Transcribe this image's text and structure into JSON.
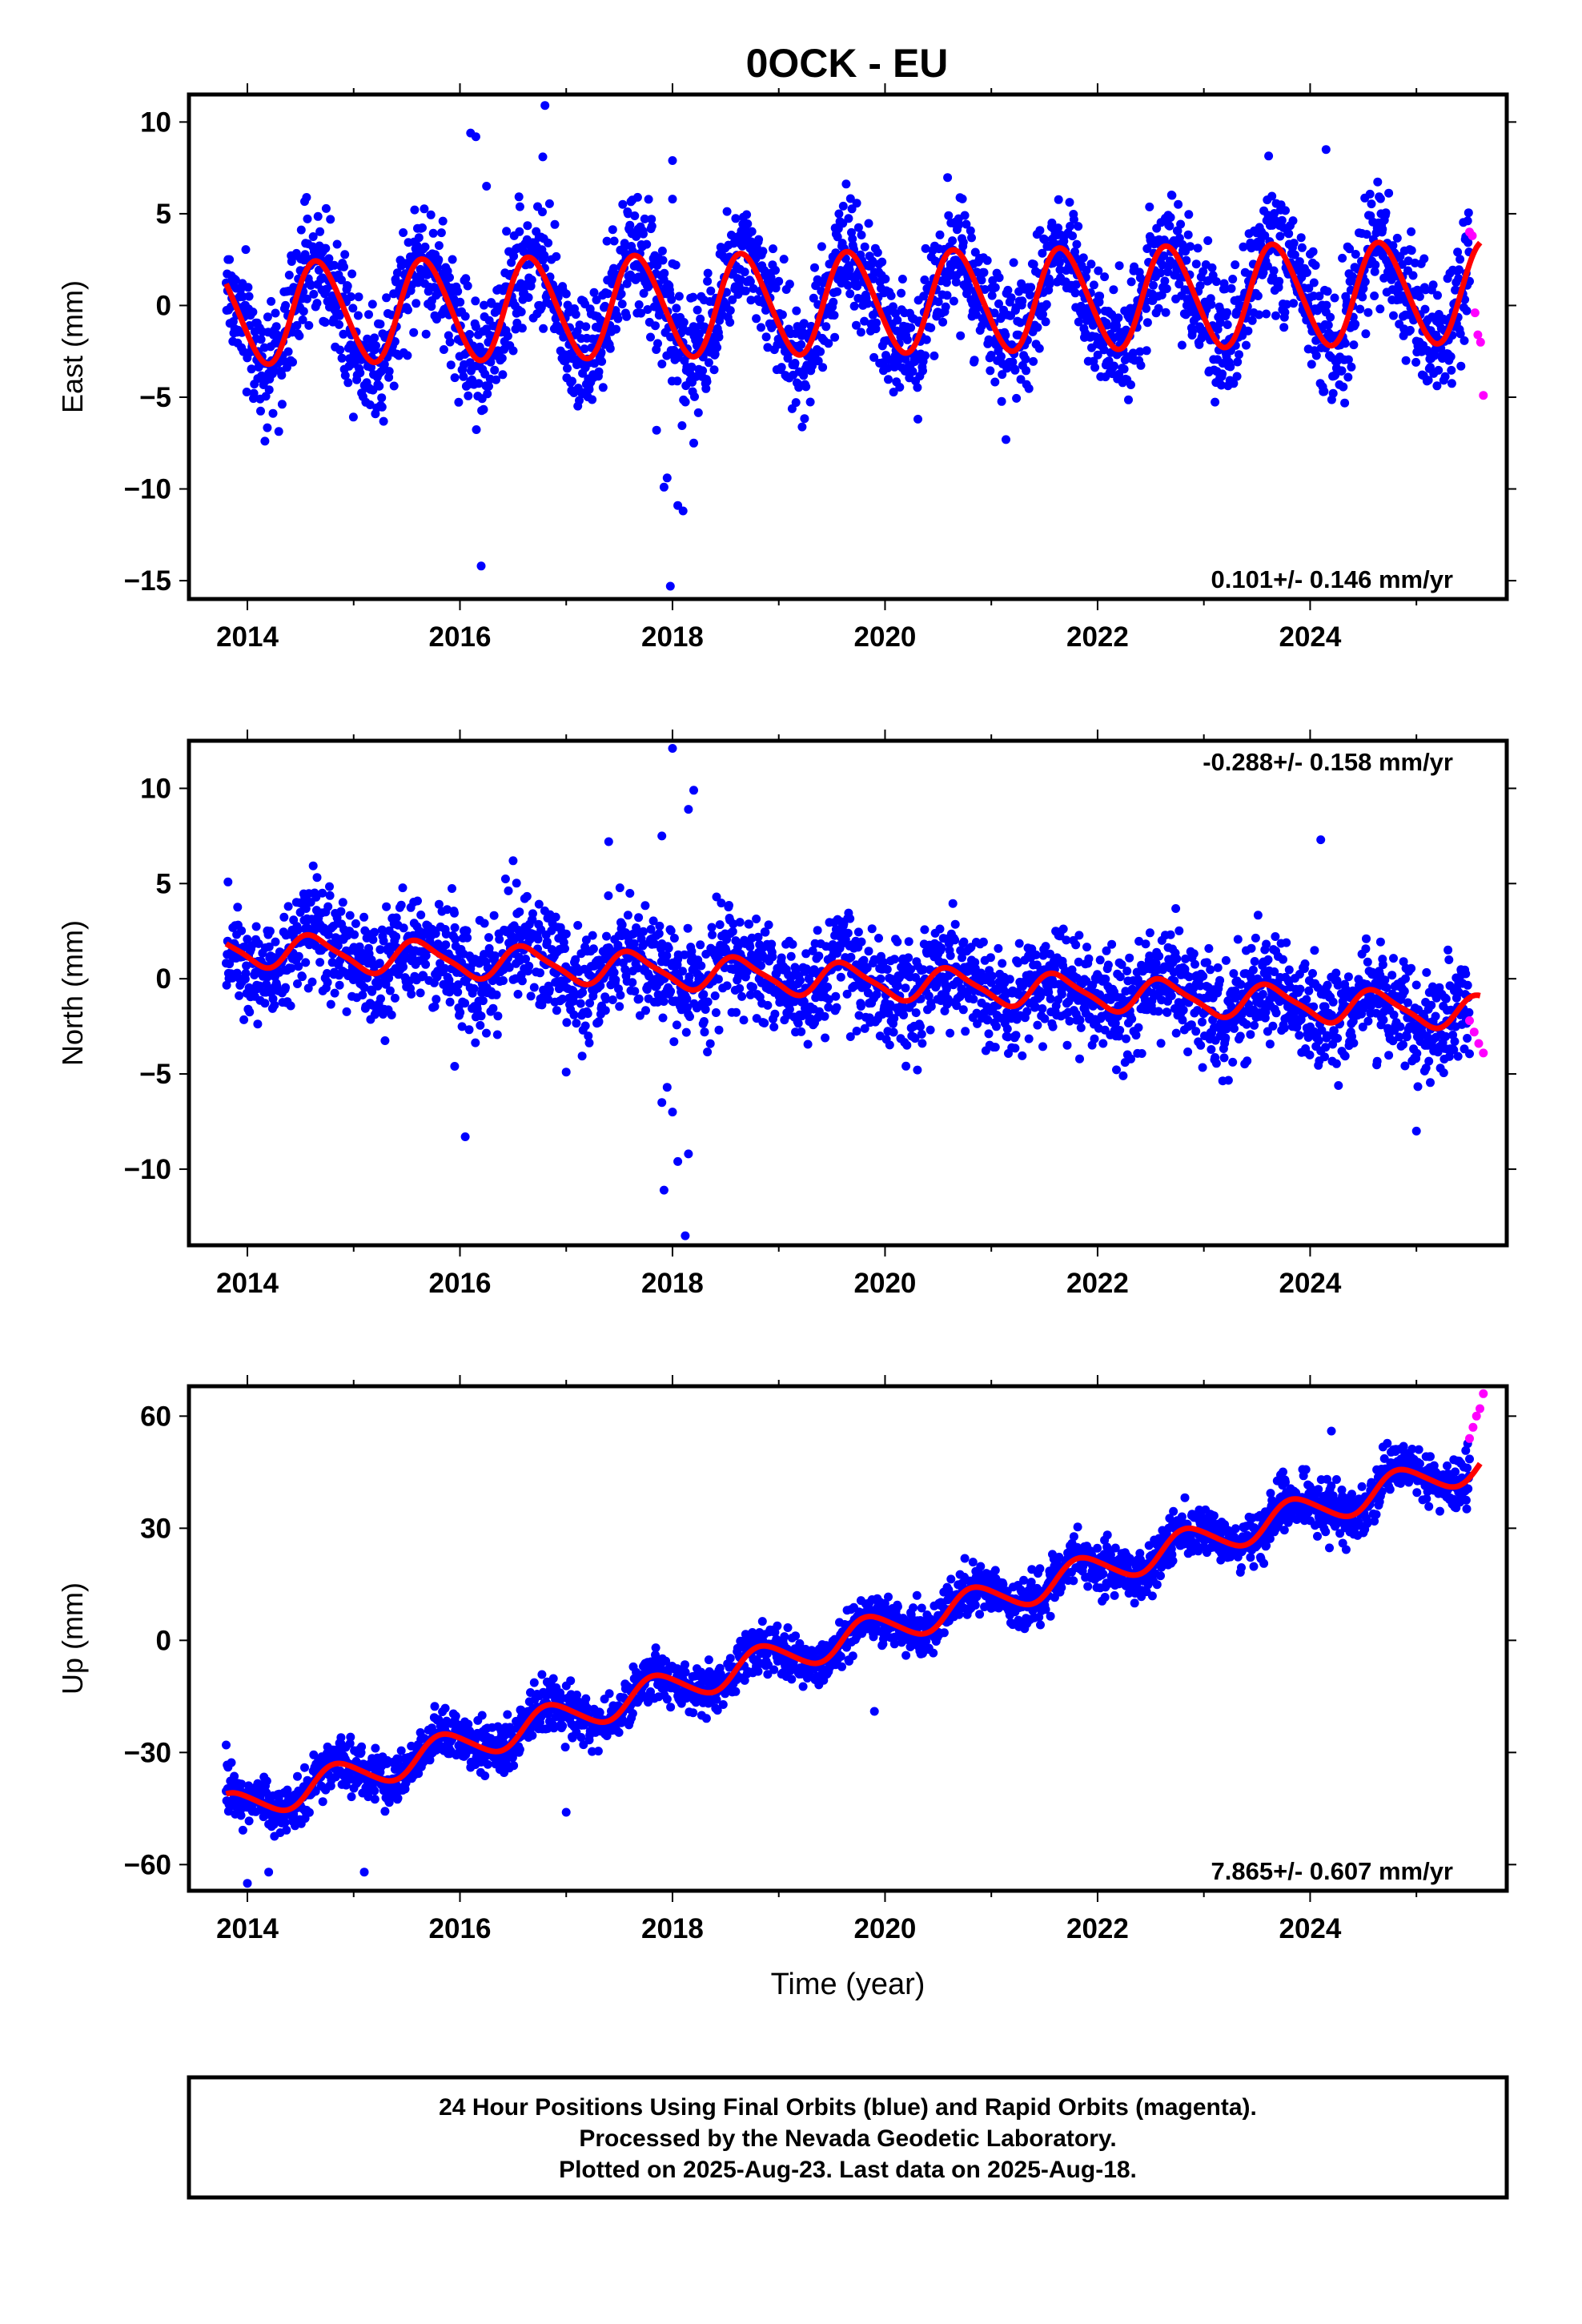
{
  "chart_data": [
    {
      "type": "scatter",
      "title": "0OCK - EU",
      "ylabel": "East (mm)",
      "xlabel": "",
      "ylim": [
        -16,
        11.5
      ],
      "xlim": [
        2013.45,
        2025.85
      ],
      "yticks": [
        10,
        5,
        0,
        -5,
        -10,
        -15
      ],
      "xticks": [
        2014,
        2016,
        2018,
        2020,
        2022,
        2024
      ],
      "rate_text": "0.101+/- 0.146 mm/yr",
      "rate_position": "bottom-right",
      "grid": false,
      "model": {
        "mean": -0.45,
        "rate_mm_per_yr": 0.101,
        "annual_amplitude": 2.75,
        "annual_phase_year": 0.42,
        "semiannual_amplitude": 0.25
      },
      "series": [
        {
          "name": "Final Orbits",
          "color": "#0000ff",
          "x_range": [
            2013.8,
            2025.5
          ],
          "scatter_mm": 1.8
        },
        {
          "name": "Rapid Orbits",
          "color": "#ff00ff",
          "x_range": [
            2025.5,
            2025.63
          ],
          "values": [
            4,
            3.8,
            -0.4,
            -1.6,
            -2,
            -4.9
          ]
        },
        {
          "name": "Model",
          "color": "#ff0000"
        }
      ],
      "outliers": [
        [
          2016.1,
          9.4
        ],
        [
          2016.15,
          9.2
        ],
        [
          2016.25,
          6.5
        ],
        [
          2016.8,
          10.9
        ],
        [
          2016.78,
          8.1
        ],
        [
          2018.0,
          7.9
        ],
        [
          2018.0,
          5.8
        ],
        [
          2017.95,
          -9.4
        ],
        [
          2017.92,
          -9.9
        ],
        [
          2018.05,
          -10.9
        ],
        [
          2018.1,
          -11.2
        ],
        [
          2017.98,
          -15.3
        ],
        [
          2016.2,
          -14.2
        ],
        [
          2024.15,
          8.5
        ],
        [
          2018.2,
          -7.5
        ],
        [
          2017.85,
          -6.8
        ]
      ]
    },
    {
      "type": "scatter",
      "title": "",
      "ylabel": "North (mm)",
      "xlabel": "",
      "ylim": [
        -14,
        12.5
      ],
      "xlim": [
        2013.45,
        2025.85
      ],
      "yticks": [
        10,
        5,
        0,
        -5,
        -10
      ],
      "xticks": [
        2014,
        2016,
        2018,
        2020,
        2022,
        2024
      ],
      "rate_text": "-0.288+/- 0.158 mm/yr",
      "rate_position": "top-right",
      "grid": false,
      "model": {
        "mean": 1.6,
        "rate_mm_per_yr": -0.288,
        "annual_amplitude": 0.85,
        "annual_phase_year": 0.38,
        "semiannual_amplitude": 0.2
      },
      "series": [
        {
          "name": "Final Orbits",
          "color": "#0000ff",
          "x_range": [
            2013.8,
            2025.5
          ],
          "scatter_mm": 1.5
        },
        {
          "name": "Rapid Orbits",
          "color": "#ff00ff",
          "x_range": [
            2025.5,
            2025.63
          ],
          "values": [
            -2.2,
            -2.8,
            -3.4,
            -3.9
          ]
        },
        {
          "name": "Model",
          "color": "#ff0000"
        }
      ],
      "outliers": [
        [
          2018.0,
          12.1
        ],
        [
          2018.2,
          9.9
        ],
        [
          2018.15,
          8.9
        ],
        [
          2017.9,
          7.5
        ],
        [
          2017.4,
          7.2
        ],
        [
          2016.5,
          6.2
        ],
        [
          2024.1,
          7.3
        ],
        [
          2016.05,
          -8.3
        ],
        [
          2015.95,
          -4.6
        ],
        [
          2017.95,
          -5.7
        ],
        [
          2017.9,
          -6.5
        ],
        [
          2018.0,
          -7.0
        ],
        [
          2018.15,
          -9.2
        ],
        [
          2018.05,
          -9.6
        ],
        [
          2017.92,
          -11.1
        ],
        [
          2018.12,
          -13.5
        ],
        [
          2025.0,
          -8.0
        ],
        [
          2017.0,
          -4.9
        ]
      ]
    },
    {
      "type": "scatter",
      "title": "",
      "ylabel": "Up (mm)",
      "xlabel": "Time (year)",
      "ylim": [
        -67,
        68
      ],
      "xlim": [
        2013.45,
        2025.85
      ],
      "yticks": [
        60,
        30,
        0,
        -30,
        -60
      ],
      "xticks": [
        2014,
        2016,
        2018,
        2020,
        2022,
        2024
      ],
      "rate_text": "7.865+/- 0.607 mm/yr",
      "rate_position": "bottom-right",
      "grid": false,
      "model": {
        "mean": -45.5,
        "rate_mm_per_yr": 7.865,
        "annual_amplitude": 4.3,
        "annual_phase_year": 0.6,
        "semiannual_amplitude": 0.5
      },
      "series": [
        {
          "name": "Final Orbits",
          "color": "#0000ff",
          "x_range": [
            2013.8,
            2025.5
          ],
          "scatter_mm": 3.6
        },
        {
          "name": "Rapid Orbits",
          "color": "#ff00ff",
          "x_range": [
            2025.5,
            2025.63
          ],
          "values": [
            54,
            57,
            60,
            62,
            66
          ]
        },
        {
          "name": "Model",
          "color": "#ff0000"
        }
      ],
      "outliers": [
        [
          2013.8,
          -28
        ],
        [
          2014.0,
          -65
        ],
        [
          2014.2,
          -62
        ],
        [
          2015.1,
          -62
        ],
        [
          2017.0,
          -46
        ],
        [
          2019.9,
          -19
        ],
        [
          2020.3,
          12
        ],
        [
          2024.2,
          56
        ]
      ]
    }
  ],
  "footer": {
    "line1": "24 Hour Positions Using Final Orbits (blue) and Rapid Orbits (magenta).",
    "line2": "Processed by the Nevada Geodetic Laboratory.",
    "line3": "Plotted on 2025-Aug-23. Last data on 2025-Aug-18."
  }
}
